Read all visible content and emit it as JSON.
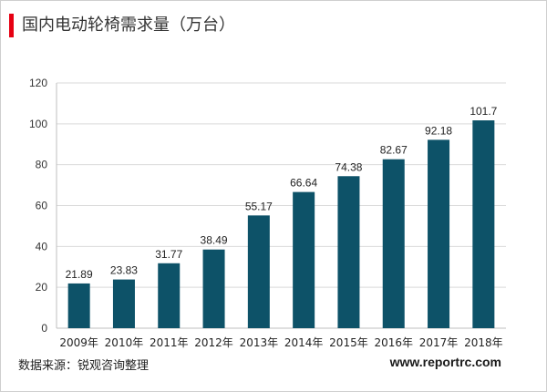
{
  "title": "国内电动轮椅需求量（万台）",
  "source": "数据来源：锐观咨询整理",
  "site": "www.reportrc.com",
  "colors": {
    "accent": "#e60012",
    "bar": "#0d5268",
    "grid": "#d9d9d9",
    "axis": "#bfbfbf"
  },
  "chart_data": {
    "type": "bar",
    "title": "国内电动轮椅需求量（万台）",
    "categories": [
      "2009年",
      "2010年",
      "2011年",
      "2012年",
      "2013年",
      "2014年",
      "2015年",
      "2016年",
      "2017年",
      "2018年"
    ],
    "values": [
      21.89,
      23.83,
      31.77,
      38.49,
      55.17,
      66.64,
      74.38,
      82.67,
      92.18,
      101.7
    ],
    "value_labels": [
      "21.89",
      "23.83",
      "31.77",
      "38.49",
      "55.17",
      "66.64",
      "74.38",
      "82.67",
      "92.18",
      "101.7"
    ],
    "yticks": [
      0,
      20,
      40,
      60,
      80,
      100,
      120
    ],
    "ylim": [
      0,
      120
    ],
    "grid": true,
    "xlabel": "",
    "ylabel": ""
  }
}
